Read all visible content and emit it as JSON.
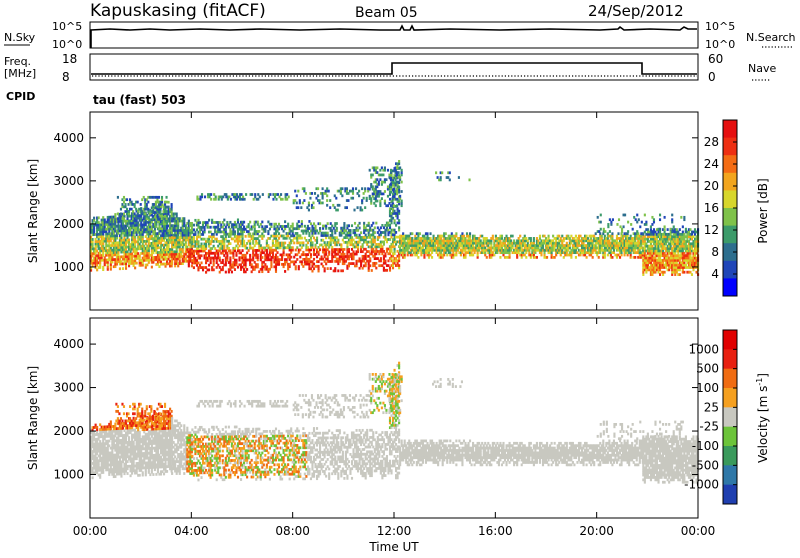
{
  "header": {
    "station": "Kapuskasing (fitACF)",
    "beam": "Beam 05",
    "date": "24/Sep/2012"
  },
  "noise_panel": {
    "left_label": "N.Sky",
    "left_ticks": [
      "10^5",
      "10^0"
    ],
    "right_ticks": [
      "10^5",
      "10^0"
    ],
    "right_label": "N.Search"
  },
  "freq_panel": {
    "left_label_1": "Freq.",
    "left_label_2": "[MHz]",
    "left_ticks": [
      "18",
      "8"
    ],
    "right_ticks": [
      "60",
      "0"
    ],
    "right_label": "Nave"
  },
  "cpid": {
    "label": "CPID",
    "value": "tau (fast) 503"
  },
  "chart_data": [
    {
      "type": "heatmap",
      "quantity": "Power",
      "ylabel": "Slant Range [km]",
      "ylim": [
        0,
        4600
      ],
      "yticks": [
        "1000",
        "2000",
        "3000",
        "4000"
      ],
      "xlim": [
        0,
        24
      ],
      "colorbar_label": "Power [dB]",
      "colorbar_ticks": [
        "28",
        "24",
        "20",
        "16",
        "12",
        "8",
        "4"
      ],
      "colorbar_range": [
        0,
        32
      ],
      "colorbar_colors": [
        "#0000ff",
        "#1f45b8",
        "#2d6e8e",
        "#3c9b6a",
        "#7fc24a",
        "#d7d62c",
        "#f2a51e",
        "#f46c14",
        "#ee2f12",
        "#e50f0f"
      ]
    },
    {
      "type": "heatmap",
      "quantity": "Velocity",
      "ylabel": "Slant Range [km]",
      "ylim": [
        0,
        4600
      ],
      "yticks": [
        "1000",
        "2000",
        "3000",
        "4000"
      ],
      "xlim": [
        0,
        24
      ],
      "xlabel": "Time UT",
      "xticks": [
        "00:00",
        "04:00",
        "08:00",
        "12:00",
        "16:00",
        "20:00",
        "00:00"
      ],
      "colorbar_label": "Velocity [m s",
      "colorbar_label_sup": "-1",
      "colorbar_label_end": "]",
      "colorbar_ticks": [
        "1000",
        "500",
        "100",
        "25",
        "-25",
        "-100",
        "-500",
        "-1000"
      ],
      "colorbar_colors": [
        "#1f3fb0",
        "#2f78a8",
        "#3a9a5c",
        "#6cc43a",
        "#c8c8c0",
        "#f5a020",
        "#f06c12",
        "#e82010",
        "#e00000"
      ]
    }
  ]
}
